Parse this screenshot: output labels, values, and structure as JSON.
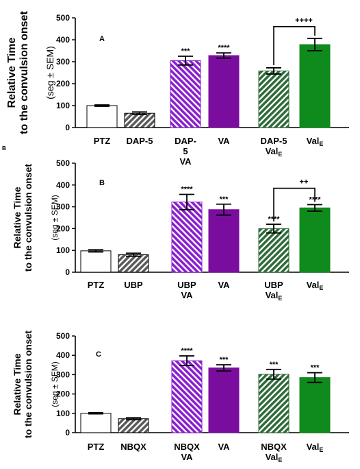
{
  "colors": {
    "white_bar": "#ffffff",
    "gray_bar": "#5a5a5a",
    "violet": "#8a1fcf",
    "purple": "#7a0d9e",
    "dark_green": "#2f6b3a",
    "green": "#0f8a1d"
  },
  "chart_data": [
    {
      "type": "bar",
      "panel_letter": "A",
      "corner_letter": "",
      "ylabel": "Relative Time",
      "ylabel2": "to the convulsion onset",
      "ylabel3": "(seg ± SEM)",
      "ylim": [
        0,
        500
      ],
      "yticks": [
        "0",
        "100",
        "200",
        "300",
        "400",
        "500"
      ],
      "categories": [
        {
          "line1": "PTZ",
          "line2": "",
          "line3": "",
          "sub": ""
        },
        {
          "line1": "DAP-5",
          "line2": "",
          "line3": "",
          "sub": ""
        },
        {
          "line1": "DAP-",
          "line2": "5",
          "line3": "VA",
          "sub": ""
        },
        {
          "line1": "VA",
          "line2": "",
          "line3": "",
          "sub": ""
        },
        {
          "line1": "DAP-5",
          "line2": "Val",
          "line3": "",
          "sub": "E"
        },
        {
          "line1": "Val",
          "line2": "",
          "line3": "",
          "sub": "E"
        }
      ],
      "values": [
        100,
        65,
        305,
        328,
        258,
        378
      ],
      "errors": [
        3,
        6,
        20,
        12,
        14,
        28
      ],
      "significance": [
        "",
        "",
        "***",
        "****",
        "",
        ""
      ],
      "fills": [
        "white",
        "gray",
        "violet",
        "purple",
        "darkgreen",
        "green"
      ],
      "bracket": {
        "from": 4,
        "to": 5,
        "label": "++++",
        "y": 460
      }
    },
    {
      "type": "bar",
      "panel_letter": "B",
      "corner_letter": "B",
      "ylabel": "Relative Time",
      "ylabel2": "to the convulsion onset",
      "ylabel3": "(seg ± SEM)",
      "ylim": [
        0,
        500
      ],
      "yticks": [
        "0",
        "100",
        "200",
        "300",
        "400",
        "500"
      ],
      "categories": [
        {
          "line1": "PTZ",
          "line2": "",
          "line3": "",
          "sub": ""
        },
        {
          "line1": "UBP",
          "line2": "",
          "line3": "",
          "sub": ""
        },
        {
          "line1": "UBP",
          "line2": "VA",
          "line3": "",
          "sub": ""
        },
        {
          "line1": "VA",
          "line2": "",
          "line3": "",
          "sub": ""
        },
        {
          "line1": "UBP",
          "line2": "Val",
          "line3": "",
          "sub": "E"
        },
        {
          "line1": "Val",
          "line2": "",
          "line3": "",
          "sub": "E"
        }
      ],
      "values": [
        98,
        80,
        322,
        287,
        200,
        295
      ],
      "errors": [
        5,
        7,
        35,
        25,
        20,
        15
      ],
      "significance": [
        "",
        "",
        "****",
        "***",
        "****",
        "****"
      ],
      "fills": [
        "white",
        "gray",
        "violet",
        "purple",
        "darkgreen",
        "green"
      ],
      "bracket": {
        "from": 4,
        "to": 5,
        "label": "++",
        "y": 385
      }
    },
    {
      "type": "bar",
      "panel_letter": "C",
      "corner_letter": "",
      "ylabel": "Relative Time",
      "ylabel2": "to the convulsion onset",
      "ylabel3": "(seg ± SEM)",
      "ylim": [
        0,
        500
      ],
      "yticks": [
        "0",
        "100",
        "200",
        "300",
        "400",
        "500"
      ],
      "categories": [
        {
          "line1": "PTZ",
          "line2": "",
          "line3": "",
          "sub": ""
        },
        {
          "line1": "NBQX",
          "line2": "",
          "line3": "",
          "sub": ""
        },
        {
          "line1": "NBQX",
          "line2": "VA",
          "line3": "",
          "sub": ""
        },
        {
          "line1": "VA",
          "line2": "",
          "line3": "",
          "sub": ""
        },
        {
          "line1": "NBQX",
          "line2": "Val",
          "line3": "",
          "sub": "E"
        },
        {
          "line1": "Val",
          "line2": "",
          "line3": "",
          "sub": "E"
        }
      ],
      "values": [
        100,
        72,
        372,
        335,
        302,
        285
      ],
      "errors": [
        3,
        5,
        25,
        16,
        25,
        25
      ],
      "significance": [
        "",
        "",
        "****",
        "***",
        "***",
        "***"
      ],
      "fills": [
        "white",
        "gray",
        "violet",
        "purple",
        "darkgreen",
        "green"
      ],
      "bracket": null
    }
  ]
}
